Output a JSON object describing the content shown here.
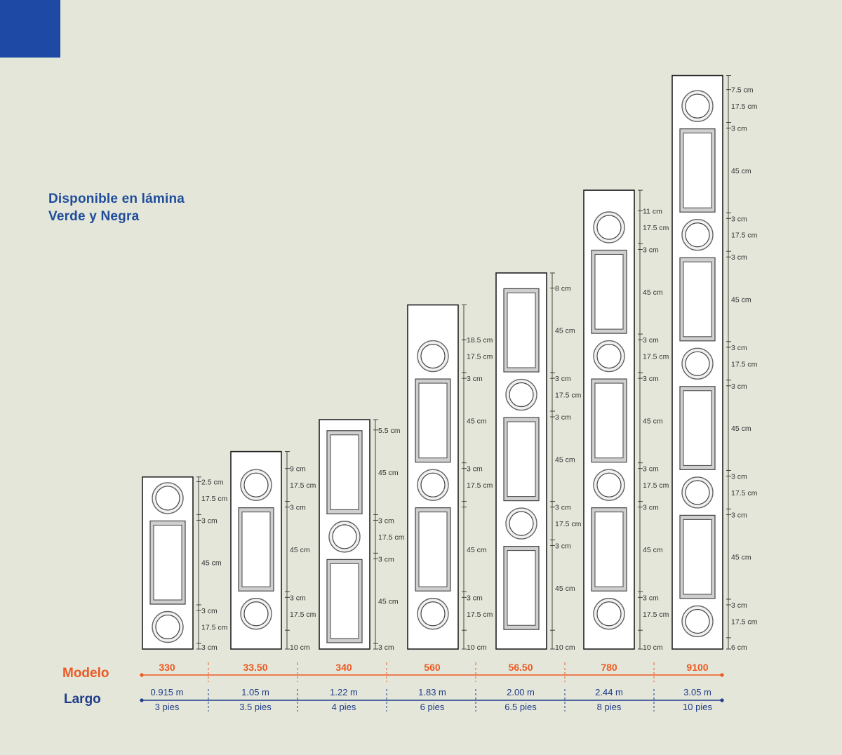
{
  "note": {
    "line1": "Disponible en lámina",
    "line2": "Verde y Negra"
  },
  "rows": {
    "modelo": "Modelo",
    "largo": "Largo"
  },
  "colors": {
    "background": "#e3e6d8",
    "accent_blue": "#1e4aa6",
    "modelo_orange": "#ec5a25",
    "largo_navy": "#1f3c8c",
    "panel_white": "#ffffff",
    "outline": "#222222"
  },
  "models": [
    {
      "model": "330",
      "length_m": "0.915 m",
      "length_ft": "3 pies",
      "parts": [
        "g",
        "c",
        "g",
        "p",
        "g",
        "c",
        "g"
      ],
      "dims": [
        "2.5 cm",
        "17.5 cm",
        "3 cm",
        "45 cm",
        "3 cm",
        "17.5 cm",
        "3 cm"
      ]
    },
    {
      "model": "33.50",
      "length_m": "1.05 m",
      "length_ft": "3.5 pies",
      "parts": [
        "g",
        "c",
        "g",
        "p",
        "g",
        "c",
        "g"
      ],
      "dims": [
        "9 cm",
        "17.5 cm",
        "3 cm",
        "45 cm",
        "3 cm",
        "17.5 cm",
        "10 cm"
      ]
    },
    {
      "model": "340",
      "length_m": "1.22 m",
      "length_ft": "4 pies",
      "parts": [
        "g",
        "p",
        "g",
        "c",
        "g",
        "p",
        "g"
      ],
      "dims": [
        "5.5 cm",
        "45 cm",
        "3 cm",
        "17.5 cm",
        "3 cm",
        "45 cm",
        "3 cm"
      ]
    },
    {
      "model": "560",
      "length_m": "1.83 m",
      "length_ft": "6 pies",
      "parts": [
        "g",
        "c",
        "g",
        "p",
        "g",
        "c",
        "g",
        "p",
        "g",
        "c",
        "g"
      ],
      "dims": [
        "18.5 cm",
        "17.5 cm",
        "3 cm",
        "45 cm",
        "3 cm",
        "17.5 cm",
        "",
        "45 cm",
        "3 cm",
        "17.5 cm",
        "10 cm"
      ]
    },
    {
      "model": "56.50",
      "length_m": "2.00 m",
      "length_ft": "6.5 pies",
      "parts": [
        "g",
        "p",
        "g",
        "c",
        "g",
        "p",
        "g",
        "c",
        "g",
        "p",
        "g"
      ],
      "dims": [
        "8 cm",
        "45 cm",
        "3 cm",
        "17.5 cm",
        "3 cm",
        "45 cm",
        "3 cm",
        "17.5 cm",
        "3 cm",
        "45 cm",
        "10 cm"
      ]
    },
    {
      "model": "780",
      "length_m": "2.44 m",
      "length_ft": "8 pies",
      "parts": [
        "g",
        "c",
        "g",
        "p",
        "g",
        "c",
        "g",
        "p",
        "g",
        "c",
        "g",
        "p",
        "g",
        "c",
        "g"
      ],
      "dims": [
        "11 cm",
        "17.5 cm",
        "3 cm",
        "45 cm",
        "3 cm",
        "17.5 cm",
        "3 cm",
        "45 cm",
        "3 cm",
        "17.5 cm",
        "3 cm",
        "45 cm",
        "3 cm",
        "17.5 cm",
        "10 cm"
      ]
    },
    {
      "model": "9100",
      "length_m": "3.05 m",
      "length_ft": "10 pies",
      "parts": [
        "g",
        "c",
        "g",
        "p",
        "g",
        "c",
        "g",
        "p",
        "g",
        "c",
        "g",
        "p",
        "g",
        "c",
        "g",
        "p",
        "g",
        "c",
        "g"
      ],
      "dims": [
        "7.5 cm",
        "17.5 cm",
        "3 cm",
        "45 cm",
        "3 cm",
        "17.5 cm",
        "3 cm",
        "45 cm",
        "3 cm",
        "17.5 cm",
        "3 cm",
        "45 cm",
        "3 cm",
        "17.5 cm",
        "3 cm",
        "45 cm",
        "3 cm",
        "17.5 cm",
        "6 cm"
      ]
    }
  ]
}
